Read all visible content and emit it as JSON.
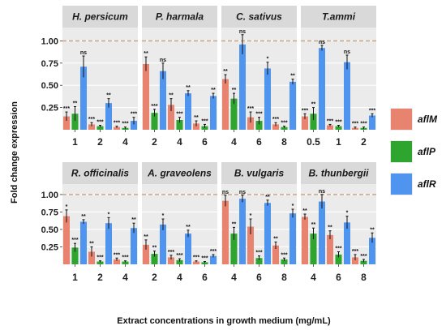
{
  "chart_data": {
    "type": "bar",
    "xlabel": "Extract concentrations in growth medium (mg/mL)",
    "ylabel": "Fold change expression",
    "ylim": [
      0,
      1.15
    ],
    "yticks": [
      "0.25",
      "0.50",
      "0.75",
      "1.00"
    ],
    "reference_line": 1.0,
    "legend_position": "right",
    "series_names": [
      "aflM",
      "aflP",
      "aflR"
    ],
    "colors": {
      "aflM": "#e8836f",
      "aflP": "#2ea52e",
      "aflR": "#4f95f0",
      "strip_bg": "#d9d9d9",
      "panel_bg": "#ebebeb",
      "ref_line": "#c8a07e"
    },
    "panels": [
      {
        "title": "H. persicum",
        "categories": [
          "1",
          "2",
          "4"
        ],
        "series": [
          {
            "name": "aflM",
            "values": [
              0.15,
              0.06,
              0.03
            ],
            "errors": [
              0.05,
              0.02,
              0.01
            ],
            "sig": [
              "***",
              "***",
              "***"
            ]
          },
          {
            "name": "aflP",
            "values": [
              0.18,
              0.04,
              0.02
            ],
            "errors": [
              0.08,
              0.01,
              0.01
            ],
            "sig": [
              "**",
              "***",
              "***"
            ]
          },
          {
            "name": "aflR",
            "values": [
              0.71,
              0.3,
              0.1
            ],
            "errors": [
              0.12,
              0.05,
              0.04
            ],
            "sig": [
              "ns",
              "**",
              "***"
            ]
          }
        ]
      },
      {
        "title": "P. harmala",
        "categories": [
          "2",
          "4",
          "6"
        ],
        "series": [
          {
            "name": "aflM",
            "values": [
              0.74,
              0.28,
              0.07
            ],
            "errors": [
              0.08,
              0.07,
              0.03
            ],
            "sig": [
              "**",
              "**",
              "**"
            ]
          },
          {
            "name": "aflP",
            "values": [
              0.19,
              0.11,
              0.04
            ],
            "errors": [
              0.04,
              0.03,
              0.02
            ],
            "sig": [
              "***",
              "***",
              "***"
            ]
          },
          {
            "name": "aflR",
            "values": [
              0.66,
              0.41,
              0.38
            ],
            "errors": [
              0.09,
              0.03,
              0.03
            ],
            "sig": [
              "ns",
              "**",
              "**"
            ]
          }
        ]
      },
      {
        "title": "C. sativus",
        "categories": [
          "4",
          "6",
          "8"
        ],
        "series": [
          {
            "name": "aflM",
            "values": [
              0.57,
              0.14,
              0.06
            ],
            "errors": [
              0.05,
              0.06,
              0.02
            ],
            "sig": [
              "**",
              "***",
              "***"
            ]
          },
          {
            "name": "aflP",
            "values": [
              0.35,
              0.1,
              0.03
            ],
            "errors": [
              0.06,
              0.04,
              0.01
            ],
            "sig": [
              "**",
              "***",
              "***"
            ]
          },
          {
            "name": "aflR",
            "values": [
              0.96,
              0.69,
              0.54
            ],
            "errors": [
              0.11,
              0.07,
              0.03
            ],
            "sig": [
              "ns",
              "*",
              "**"
            ]
          }
        ]
      },
      {
        "title": "T.ammi",
        "categories": [
          "0.5",
          "1",
          "2"
        ],
        "series": [
          {
            "name": "aflM",
            "values": [
              0.15,
              0.05,
              0.02
            ],
            "errors": [
              0.03,
              0.01,
              0.01
            ],
            "sig": [
              "***",
              "***",
              "***"
            ]
          },
          {
            "name": "aflP",
            "values": [
              0.18,
              0.04,
              0.02
            ],
            "errors": [
              0.07,
              0.01,
              0.01
            ],
            "sig": [
              "**",
              "***",
              "***"
            ]
          },
          {
            "name": "aflR",
            "values": [
              0.92,
              0.76,
              0.16
            ],
            "errors": [
              0.03,
              0.08,
              0.02
            ],
            "sig": [
              "ns",
              "ns",
              "***"
            ]
          }
        ]
      },
      {
        "title": "R. officinalis",
        "categories": [
          "1",
          "2",
          "4"
        ],
        "series": [
          {
            "name": "aflM",
            "values": [
              0.69,
              0.18,
              0.07
            ],
            "errors": [
              0.09,
              0.07,
              0.02
            ],
            "sig": [
              "*",
              "**",
              "***"
            ]
          },
          {
            "name": "aflP",
            "values": [
              0.24,
              0.04,
              0.04
            ],
            "errors": [
              0.06,
              0.01,
              0.01
            ],
            "sig": [
              "***",
              "***",
              "***"
            ]
          },
          {
            "name": "aflR",
            "values": [
              0.61,
              0.59,
              0.52
            ],
            "errors": [
              0.03,
              0.08,
              0.07
            ],
            "sig": [
              "**",
              "*",
              "**"
            ]
          }
        ]
      },
      {
        "title": "A. graveolens",
        "categories": [
          "2",
          "4",
          "6"
        ],
        "series": [
          {
            "name": "aflM",
            "values": [
              0.28,
              0.1,
              0.04
            ],
            "errors": [
              0.07,
              0.03,
              0.01
            ],
            "sig": [
              "**",
              "***",
              "***"
            ]
          },
          {
            "name": "aflP",
            "values": [
              0.15,
              0.06,
              0.03
            ],
            "errors": [
              0.04,
              0.02,
              0.01
            ],
            "sig": [
              "**",
              "***",
              "***"
            ]
          },
          {
            "name": "aflR",
            "values": [
              0.57,
              0.44,
              0.12
            ],
            "errors": [
              0.08,
              0.05,
              0.02
            ],
            "sig": [
              "*",
              "**",
              "***"
            ]
          }
        ]
      },
      {
        "title": "B. vulgaris",
        "categories": [
          "4",
          "6",
          "8"
        ],
        "series": [
          {
            "name": "aflM",
            "values": [
              0.91,
              0.54,
              0.27
            ],
            "errors": [
              0.08,
              0.11,
              0.05
            ],
            "sig": [
              "ns",
              "*",
              "**"
            ]
          },
          {
            "name": "aflP",
            "values": [
              0.44,
              0.09,
              0.07
            ],
            "errors": [
              0.09,
              0.03,
              0.02
            ],
            "sig": [
              "**",
              "***",
              "***"
            ]
          },
          {
            "name": "aflR",
            "values": [
              0.94,
              0.88,
              0.73
            ],
            "errors": [
              0.05,
              0.04,
              0.06
            ],
            "sig": [
              "ns",
              "**",
              "*"
            ]
          }
        ]
      },
      {
        "title": "B. thunbergii",
        "categories": [
          "4",
          "6",
          "8"
        ],
        "series": [
          {
            "name": "aflM",
            "values": [
              0.68,
              0.42,
              0.1
            ],
            "errors": [
              0.04,
              0.06,
              0.04
            ],
            "sig": [
              "**",
              "**",
              "***"
            ]
          },
          {
            "name": "aflP",
            "values": [
              0.44,
              0.14,
              0.05
            ],
            "errors": [
              0.08,
              0.04,
              0.02
            ],
            "sig": [
              "**",
              "***",
              "***"
            ]
          },
          {
            "name": "aflR",
            "values": [
              0.9,
              0.6,
              0.38
            ],
            "errors": [
              0.1,
              0.09,
              0.07
            ],
            "sig": [
              "ns",
              "*",
              "**"
            ]
          }
        ]
      }
    ]
  }
}
